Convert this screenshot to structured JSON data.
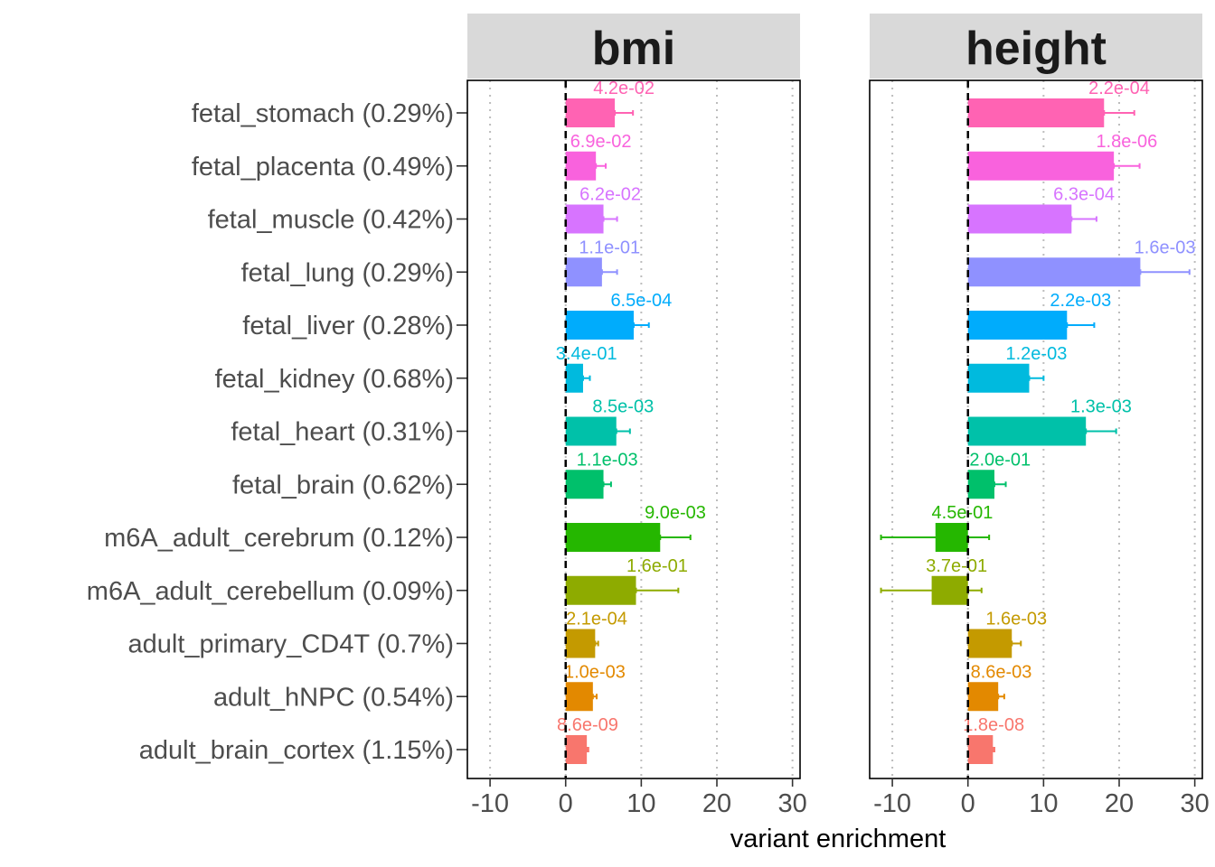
{
  "chart_data": {
    "type": "bar",
    "orientation": "horizontal",
    "xlabel": "variant enrichment",
    "xlim": [
      -13,
      31
    ],
    "xticks": [
      -10,
      0,
      10,
      20,
      30
    ],
    "xtick_labels": [
      "-10",
      "0",
      "10",
      "20",
      "30"
    ],
    "reference_line": 0,
    "grid": "vertical dotted at x ticks",
    "legend": "none",
    "categories": [
      "fetal_stomach (0.29%)",
      "fetal_placenta (0.49%)",
      "fetal_muscle (0.42%)",
      "fetal_lung (0.29%)",
      "fetal_liver (0.28%)",
      "fetal_kidney (0.68%)",
      "fetal_heart (0.31%)",
      "fetal_brain (0.62%)",
      "m6A_adult_cerebrum (0.12%)",
      "m6A_adult_cerebellum (0.09%)",
      "adult_primary_CD4T (0.7%)",
      "adult_hNPC (0.54%)",
      "adult_brain_cortex (1.15%)"
    ],
    "colors": [
      "#FF63B3",
      "#F962DD",
      "#D774FF",
      "#8F91FF",
      "#00ACFC",
      "#00BADE",
      "#00C1A9",
      "#00C06B",
      "#25B700",
      "#8EAB00",
      "#C49A00",
      "#E38900",
      "#F8766D"
    ],
    "facets": [
      {
        "name": "bmi",
        "values": [
          6.5,
          4.0,
          5.0,
          4.8,
          9.0,
          2.3,
          6.7,
          5.0,
          12.5,
          9.3,
          3.9,
          3.6,
          2.8
        ],
        "err_low": [
          6.5,
          4.0,
          5.0,
          4.8,
          9.0,
          2.3,
          6.7,
          5.0,
          12.5,
          9.3,
          3.9,
          3.6,
          2.8
        ],
        "err_high": [
          8.9,
          5.3,
          6.8,
          6.8,
          11.0,
          3.2,
          8.5,
          6.0,
          16.5,
          14.9,
          4.3,
          4.1,
          3.0
        ],
        "pvalues": [
          "4.2e-02",
          "6.9e-02",
          "6.2e-02",
          "1.1e-01",
          "6.5e-04",
          "3.4e-01",
          "8.5e-03",
          "1.1e-03",
          "9.0e-03",
          "1.6e-01",
          "2.1e-04",
          "1.0e-03",
          "8.6e-09"
        ]
      },
      {
        "name": "height",
        "values": [
          18.0,
          19.3,
          13.7,
          22.8,
          13.1,
          8.1,
          15.6,
          3.5,
          -4.3,
          -4.8,
          5.8,
          4.0,
          3.3
        ],
        "err_low": [
          18.0,
          19.3,
          13.7,
          22.8,
          13.1,
          8.1,
          15.6,
          3.5,
          -11.5,
          -11.5,
          5.8,
          4.0,
          3.3
        ],
        "err_high": [
          22.0,
          22.7,
          17.0,
          29.3,
          16.7,
          10.0,
          19.6,
          5.0,
          2.8,
          1.8,
          7.0,
          4.8,
          3.5
        ],
        "pvalues": [
          "2.2e-04",
          "1.8e-06",
          "6.3e-04",
          "1.6e-03",
          "2.2e-03",
          "1.2e-03",
          "1.3e-03",
          "2.0e-01",
          "4.5e-01",
          "3.7e-01",
          "1.6e-03",
          "8.6e-03",
          "1.8e-08"
        ]
      }
    ]
  }
}
